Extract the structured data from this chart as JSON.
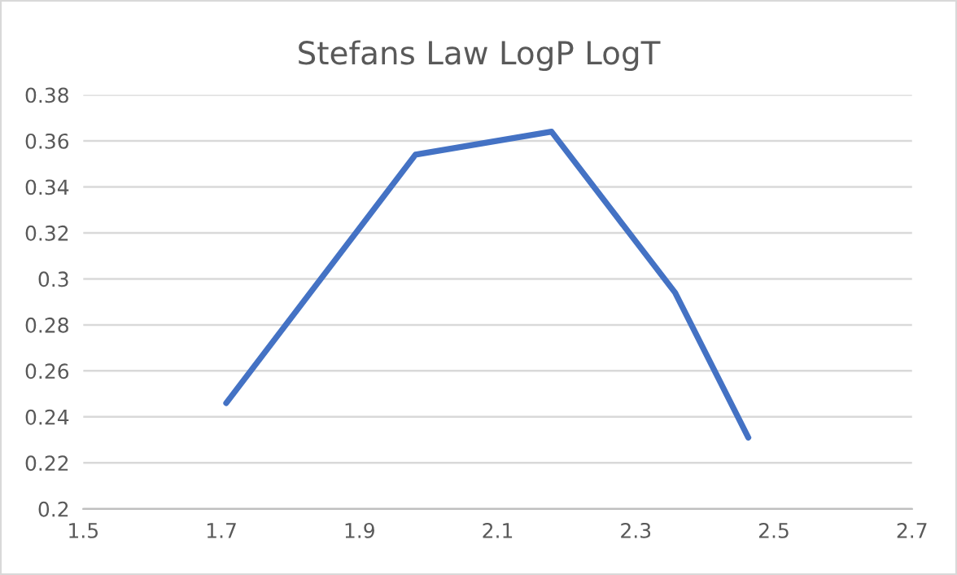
{
  "chart_data": {
    "type": "line",
    "title": "Stefans Law LogP LogT",
    "x": [
      1.707,
      1.981,
      2.178,
      2.357,
      2.463
    ],
    "series": [
      {
        "color": "#4472c4",
        "values": [
          0.246,
          0.354,
          0.364,
          0.294,
          0.231
        ]
      }
    ],
    "xlim": [
      1.5,
      2.7
    ],
    "xticks": [
      1.5,
      1.7,
      1.9,
      2.1,
      2.3,
      2.5,
      2.7
    ],
    "ylim": [
      0.2,
      0.38
    ],
    "yticks": [
      0.2,
      0.22,
      0.24,
      0.26,
      0.28,
      0.3,
      0.32,
      0.34,
      0.36,
      0.38
    ],
    "grid": "y",
    "marker": "none",
    "line_style": "solid"
  }
}
